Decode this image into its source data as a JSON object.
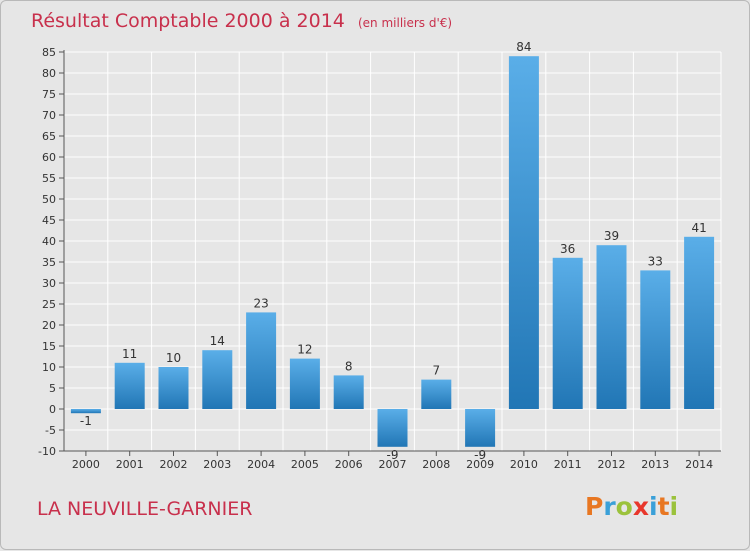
{
  "title": "Résultat Comptable 2000 à 2014",
  "unit": "(en milliers d'€)",
  "commune": "LA NEUVILLE-GARNIER",
  "logo": {
    "letters": [
      "P",
      "r",
      "o",
      "x",
      "i",
      "t",
      "i"
    ],
    "colors": [
      "#e87722",
      "#3aa0d8",
      "#9bc23c",
      "#e8372c",
      "#3aa0d8",
      "#e87722",
      "#9bc23c"
    ]
  },
  "colors": {
    "title": "#c8304c",
    "bar_light": "#5aaee8",
    "bar_dark": "#2176b5"
  },
  "chart_data": {
    "type": "bar",
    "categories": [
      "2000",
      "2001",
      "2002",
      "2003",
      "2004",
      "2005",
      "2006",
      "2007",
      "2008",
      "2009",
      "2010",
      "2011",
      "2012",
      "2013",
      "2014"
    ],
    "values": [
      -1,
      11,
      10,
      14,
      23,
      12,
      8,
      -9,
      7,
      -9,
      84,
      36,
      39,
      33,
      41
    ],
    "labels": [
      "-1",
      "11",
      "10",
      "14",
      "23",
      "12",
      "8",
      "-9",
      "7",
      "-9",
      "84",
      "36",
      "39",
      "33",
      "41"
    ],
    "ylim": [
      -10,
      85
    ],
    "yticks": [
      -10,
      -5,
      0,
      5,
      10,
      15,
      20,
      25,
      30,
      35,
      40,
      45,
      50,
      55,
      60,
      65,
      70,
      75,
      80,
      85
    ],
    "grid": true
  }
}
